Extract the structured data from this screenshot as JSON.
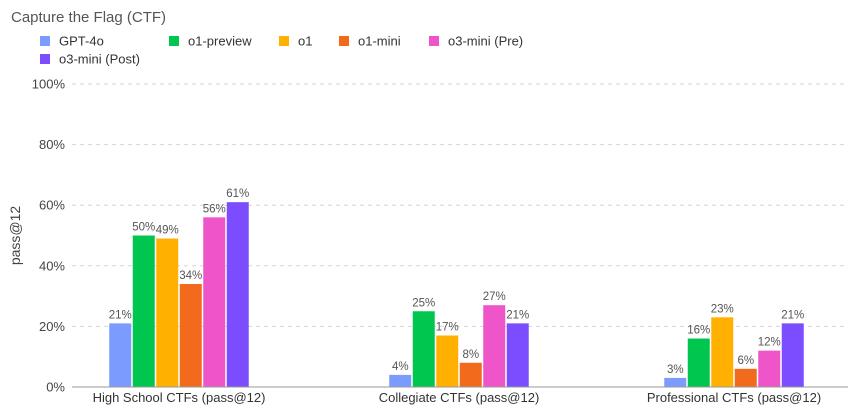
{
  "chart_data": {
    "type": "bar",
    "title": "Capture the Flag (CTF)",
    "ylabel": "pass@12",
    "xlabel": "",
    "ylim": [
      0,
      100
    ],
    "yticks": [
      "0%",
      "20%",
      "40%",
      "60%",
      "80%",
      "100%"
    ],
    "grid": true,
    "legend_position": "top-left",
    "categories": [
      "High School CTFs (pass@12)",
      "Collegiate CTFs (pass@12)",
      "Professional CTFs (pass@12)"
    ],
    "series": [
      {
        "name": "GPT-4o",
        "color": "#7b9bff",
        "values": [
          21,
          4,
          3
        ],
        "labels": [
          "21%",
          "4%",
          "3%"
        ]
      },
      {
        "name": "o1-preview",
        "color": "#00c650",
        "values": [
          50,
          25,
          16
        ],
        "labels": [
          "50%",
          "25%",
          "16%"
        ]
      },
      {
        "name": "o1",
        "color": "#ffb000",
        "values": [
          49,
          17,
          23
        ],
        "labels": [
          "49%",
          "17%",
          "23%"
        ]
      },
      {
        "name": "o1-mini",
        "color": "#f26b1d",
        "values": [
          34,
          8,
          6
        ],
        "labels": [
          "34%",
          "8%",
          "6%"
        ]
      },
      {
        "name": "o3-mini (Pre)",
        "color": "#ee55c8",
        "values": [
          56,
          27,
          12
        ],
        "labels": [
          "56%",
          "27%",
          "12%"
        ]
      },
      {
        "name": "o3-mini (Post)",
        "color": "#7c4dff",
        "values": [
          61,
          21,
          21
        ],
        "labels": [
          "61%",
          "21%",
          "21%"
        ]
      }
    ]
  }
}
